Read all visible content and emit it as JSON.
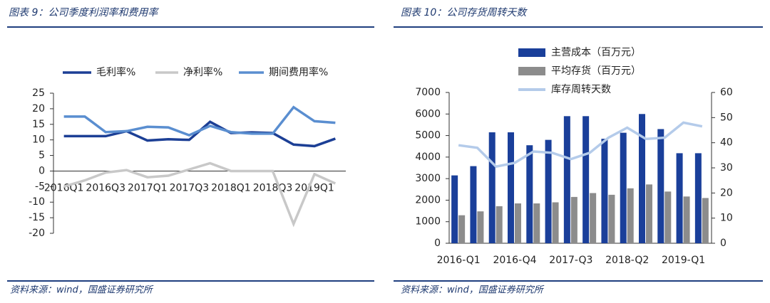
{
  "chart_data": [
    {
      "type": "line",
      "title": "图表 9：公司季度利润率和费用率",
      "source": "资料来源：wind，国盛证券研究所",
      "categories": [
        "2016Q1",
        null,
        "2016Q3",
        null,
        "2017Q1",
        null,
        "2017Q3",
        null,
        "2018Q1",
        null,
        "2018Q3",
        null,
        "2019Q1",
        null
      ],
      "series": [
        {
          "name": "毛利率%",
          "color": "#1c3f95",
          "values": [
            11.2,
            11.2,
            11.2,
            12.8,
            9.8,
            10.2,
            10.0,
            15.8,
            12.2,
            12.4,
            12.2,
            8.5,
            8.0,
            10.4
          ]
        },
        {
          "name": "净利率%",
          "color": "#c8c8c8",
          "values": [
            -5,
            -3,
            -0.5,
            0.3,
            -2,
            -1.5,
            0.5,
            2.5,
            0,
            0,
            0,
            -17,
            -1,
            -4
          ]
        },
        {
          "name": "期间费用率%",
          "color": "#5a8ed0",
          "values": [
            17.5,
            17.5,
            12.5,
            12.8,
            14.2,
            14.0,
            11.5,
            14.5,
            12.5,
            12.0,
            12.0,
            20.5,
            16,
            15.5
          ]
        }
      ],
      "ylim": [
        -20,
        25
      ],
      "yticks": [
        -20,
        -15,
        -10,
        -5,
        0,
        5,
        10,
        15,
        20,
        25
      ],
      "legend": "top"
    },
    {
      "type": "bar",
      "title": "图表 10：公司存货周转天数",
      "source": "资料来源：wind，国盛证券研究所",
      "categories": [
        "2016-Q1",
        null,
        null,
        "2016-Q4",
        null,
        null,
        "2017-Q3",
        null,
        null,
        "2018-Q2",
        null,
        null,
        "2019-Q1",
        null
      ],
      "series": [
        {
          "name": "主营成本（百万元）",
          "color": "#1a3f9a",
          "type": "bar",
          "values": [
            3150,
            3580,
            5150,
            5150,
            4550,
            4800,
            5900,
            5900,
            4850,
            5130,
            6000,
            5300,
            4180,
            4180
          ]
        },
        {
          "name": "平均存货（百万元）",
          "color": "#8c8c8c",
          "type": "bar",
          "values": [
            1300,
            1480,
            1720,
            1850,
            1850,
            1900,
            2150,
            2330,
            2250,
            2550,
            2730,
            2400,
            2170,
            2100
          ]
        },
        {
          "name": "库存周转天数",
          "color": "#b4cbea",
          "type": "line",
          "axis": "y2",
          "values": [
            39,
            38,
            30.5,
            32,
            36.5,
            36,
            33.5,
            36,
            42,
            46,
            41.5,
            42,
            48,
            46.5
          ]
        }
      ],
      "ylim": [
        0,
        7000
      ],
      "yticks": [
        0,
        1000,
        2000,
        3000,
        4000,
        5000,
        6000,
        7000
      ],
      "y2lim": [
        0,
        60
      ],
      "y2ticks": [
        0,
        10,
        20,
        30,
        40,
        50,
        60
      ],
      "legend": "top-left"
    }
  ]
}
